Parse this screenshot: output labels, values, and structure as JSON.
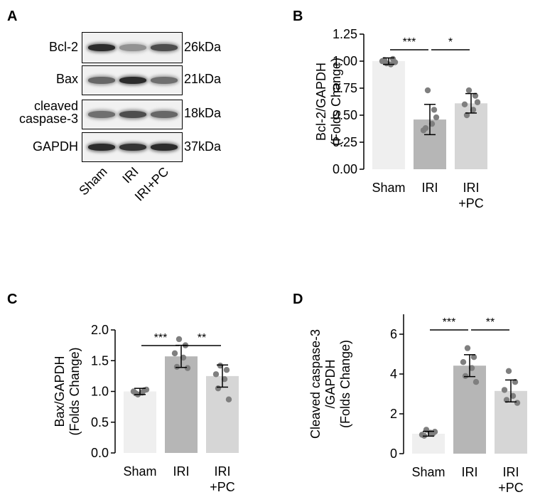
{
  "figure": {
    "panel_letters": [
      "A",
      "B",
      "C",
      "D"
    ]
  },
  "western_blot": {
    "rows": [
      {
        "protein": "Bcl-2",
        "size": "26kDa",
        "intensity": [
          0.95,
          0.35,
          0.75
        ]
      },
      {
        "protein": "Bax",
        "size": "21kDa",
        "intensity": [
          0.6,
          0.95,
          0.55
        ]
      },
      {
        "protein": "cleaved\ncaspase-3",
        "size": "18kDa",
        "intensity": [
          0.55,
          0.75,
          0.6
        ]
      },
      {
        "protein": "GAPDH",
        "size": "37kDa",
        "intensity": [
          0.95,
          0.9,
          0.95
        ]
      }
    ],
    "lanes": [
      "Sham",
      "IRI",
      "IRI+PC"
    ]
  },
  "chart_data": [
    {
      "panel": "B",
      "type": "bar",
      "categories": [
        "Sham",
        "IRI",
        "IRI\n+PC"
      ],
      "values": [
        1.0,
        0.46,
        0.61
      ],
      "errors": [
        0.03,
        0.14,
        0.09
      ],
      "points": [
        [
          0.98,
          1.02,
          1.0,
          0.97,
          1.01,
          0.99
        ],
        [
          0.73,
          0.55,
          0.36,
          0.42,
          0.38,
          0.48
        ],
        [
          0.73,
          0.68,
          0.6,
          0.55,
          0.5,
          0.62
        ]
      ],
      "ylabel": "Bcl-2/GAPDH\n(Folds Change)",
      "ylim": [
        0,
        1.25
      ],
      "yticks": [
        "0.00",
        "0.25",
        "0.50",
        "0.75",
        "1.00",
        "1.25"
      ],
      "significance": [
        {
          "from": 0,
          "to": 1,
          "label": "***"
        },
        {
          "from": 1,
          "to": 2,
          "label": "*"
        }
      ],
      "bar_colors": [
        "#efefef",
        "#b6b6b6",
        "#d6d6d6"
      ]
    },
    {
      "panel": "C",
      "type": "bar",
      "categories": [
        "Sham",
        "IRI",
        "IRI\n+PC"
      ],
      "values": [
        1.0,
        1.57,
        1.25
      ],
      "errors": [
        0.05,
        0.18,
        0.18
      ],
      "points": [
        [
          0.95,
          1.02,
          1.0,
          0.98,
          0.97,
          1.03
        ],
        [
          1.85,
          1.75,
          1.62,
          1.55,
          1.4,
          1.38
        ],
        [
          1.42,
          1.35,
          1.28,
          1.2,
          1.05,
          0.87
        ]
      ],
      "ylabel": "Bax/GAPDH\n(Folds Change)",
      "ylim": [
        0,
        2.0
      ],
      "yticks": [
        "0.0",
        "0.5",
        "1.0",
        "1.5",
        "2.0"
      ],
      "significance": [
        {
          "from": 0,
          "to": 1,
          "label": "***"
        },
        {
          "from": 1,
          "to": 2,
          "label": "**"
        }
      ],
      "bar_colors": [
        "#efefef",
        "#b6b6b6",
        "#d6d6d6"
      ]
    },
    {
      "panel": "D",
      "type": "bar",
      "categories": [
        "Sham",
        "IRI",
        "IRI\n+PC"
      ],
      "values": [
        1.0,
        4.42,
        3.15
      ],
      "errors": [
        0.12,
        0.55,
        0.55
      ],
      "points": [
        [
          1.2,
          1.0,
          0.95,
          1.05,
          0.9,
          1.1
        ],
        [
          5.3,
          4.85,
          4.6,
          4.3,
          3.9,
          3.6
        ],
        [
          4.15,
          3.6,
          3.2,
          2.9,
          2.7,
          2.55
        ]
      ],
      "ylabel": "Cleaved caspase-3\n/GAPDH\n(Folds Change)",
      "ylim": [
        0,
        7
      ],
      "yticks": [
        "0",
        "2",
        "4",
        "6"
      ],
      "significance": [
        {
          "from": 0,
          "to": 1,
          "label": "***"
        },
        {
          "from": 1,
          "to": 2,
          "label": "**"
        }
      ],
      "bar_colors": [
        "#efefef",
        "#b6b6b6",
        "#d6d6d6"
      ]
    }
  ]
}
